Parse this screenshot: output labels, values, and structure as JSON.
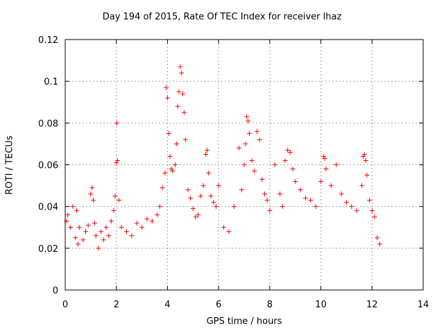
{
  "chart_data": {
    "type": "scatter",
    "title": "Day 194 of 2015, Rate Of TEC Index for receiver lhaz",
    "xlabel": "GPS time / hours",
    "ylabel": "ROTI / TECUs",
    "xlim": [
      0,
      14
    ],
    "ylim": [
      0,
      0.12
    ],
    "xticks": [
      "0",
      "2",
      "4",
      "6",
      "8",
      "10",
      "12",
      "14"
    ],
    "yticks": [
      "0",
      "0.02",
      "0.04",
      "0.06",
      "0.08",
      "0.1",
      "0.12"
    ],
    "grid": true,
    "marker": "+",
    "color": "#ff0000",
    "series": [
      {
        "name": "ROTI",
        "x": [
          0.05,
          0.1,
          0.2,
          0.3,
          0.4,
          0.45,
          0.5,
          0.55,
          0.7,
          0.8,
          0.9,
          1.0,
          1.05,
          1.1,
          1.15,
          1.2,
          1.3,
          1.4,
          1.5,
          1.6,
          1.7,
          1.8,
          1.9,
          1.95,
          2.0,
          2.02,
          2.05,
          2.1,
          2.2,
          2.4,
          2.6,
          2.8,
          3.0,
          3.2,
          3.4,
          3.6,
          3.7,
          3.8,
          3.9,
          3.95,
          4.0,
          4.05,
          4.1,
          4.15,
          4.2,
          4.3,
          4.35,
          4.4,
          4.45,
          4.5,
          4.55,
          4.6,
          4.65,
          4.7,
          4.8,
          4.9,
          5.0,
          5.1,
          5.2,
          5.3,
          5.4,
          5.5,
          5.55,
          5.6,
          5.7,
          5.8,
          5.9,
          6.0,
          6.2,
          6.4,
          6.6,
          6.8,
          6.9,
          7.0,
          7.05,
          7.1,
          7.15,
          7.2,
          7.3,
          7.4,
          7.5,
          7.6,
          7.7,
          7.8,
          7.9,
          8.0,
          8.2,
          8.4,
          8.5,
          8.6,
          8.7,
          8.8,
          8.9,
          9.0,
          9.2,
          9.4,
          9.6,
          9.8,
          10.0,
          10.1,
          10.15,
          10.2,
          10.4,
          10.6,
          10.8,
          11.0,
          11.2,
          11.4,
          11.6,
          11.65,
          11.7,
          11.75,
          11.8,
          11.9,
          12.0,
          12.1,
          12.2,
          12.3
        ],
        "y": [
          0.033,
          0.036,
          0.03,
          0.04,
          0.025,
          0.038,
          0.022,
          0.03,
          0.024,
          0.028,
          0.031,
          0.046,
          0.049,
          0.043,
          0.032,
          0.026,
          0.02,
          0.028,
          0.024,
          0.03,
          0.026,
          0.033,
          0.038,
          0.045,
          0.061,
          0.08,
          0.062,
          0.043,
          0.03,
          0.028,
          0.026,
          0.032,
          0.03,
          0.034,
          0.033,
          0.036,
          0.04,
          0.049,
          0.056,
          0.097,
          0.092,
          0.075,
          0.064,
          0.058,
          0.057,
          0.06,
          0.07,
          0.088,
          0.095,
          0.107,
          0.104,
          0.094,
          0.085,
          0.072,
          0.048,
          0.044,
          0.039,
          0.035,
          0.036,
          0.045,
          0.05,
          0.065,
          0.067,
          0.056,
          0.045,
          0.042,
          0.04,
          0.05,
          0.03,
          0.028,
          0.04,
          0.068,
          0.048,
          0.06,
          0.07,
          0.083,
          0.081,
          0.075,
          0.062,
          0.057,
          0.076,
          0.072,
          0.053,
          0.046,
          0.043,
          0.038,
          0.06,
          0.046,
          0.04,
          0.062,
          0.067,
          0.066,
          0.058,
          0.052,
          0.048,
          0.044,
          0.043,
          0.04,
          0.052,
          0.064,
          0.063,
          0.058,
          0.05,
          0.06,
          0.046,
          0.042,
          0.04,
          0.038,
          0.05,
          0.064,
          0.065,
          0.062,
          0.055,
          0.043,
          0.038,
          0.035,
          0.025,
          0.022
        ]
      }
    ]
  }
}
